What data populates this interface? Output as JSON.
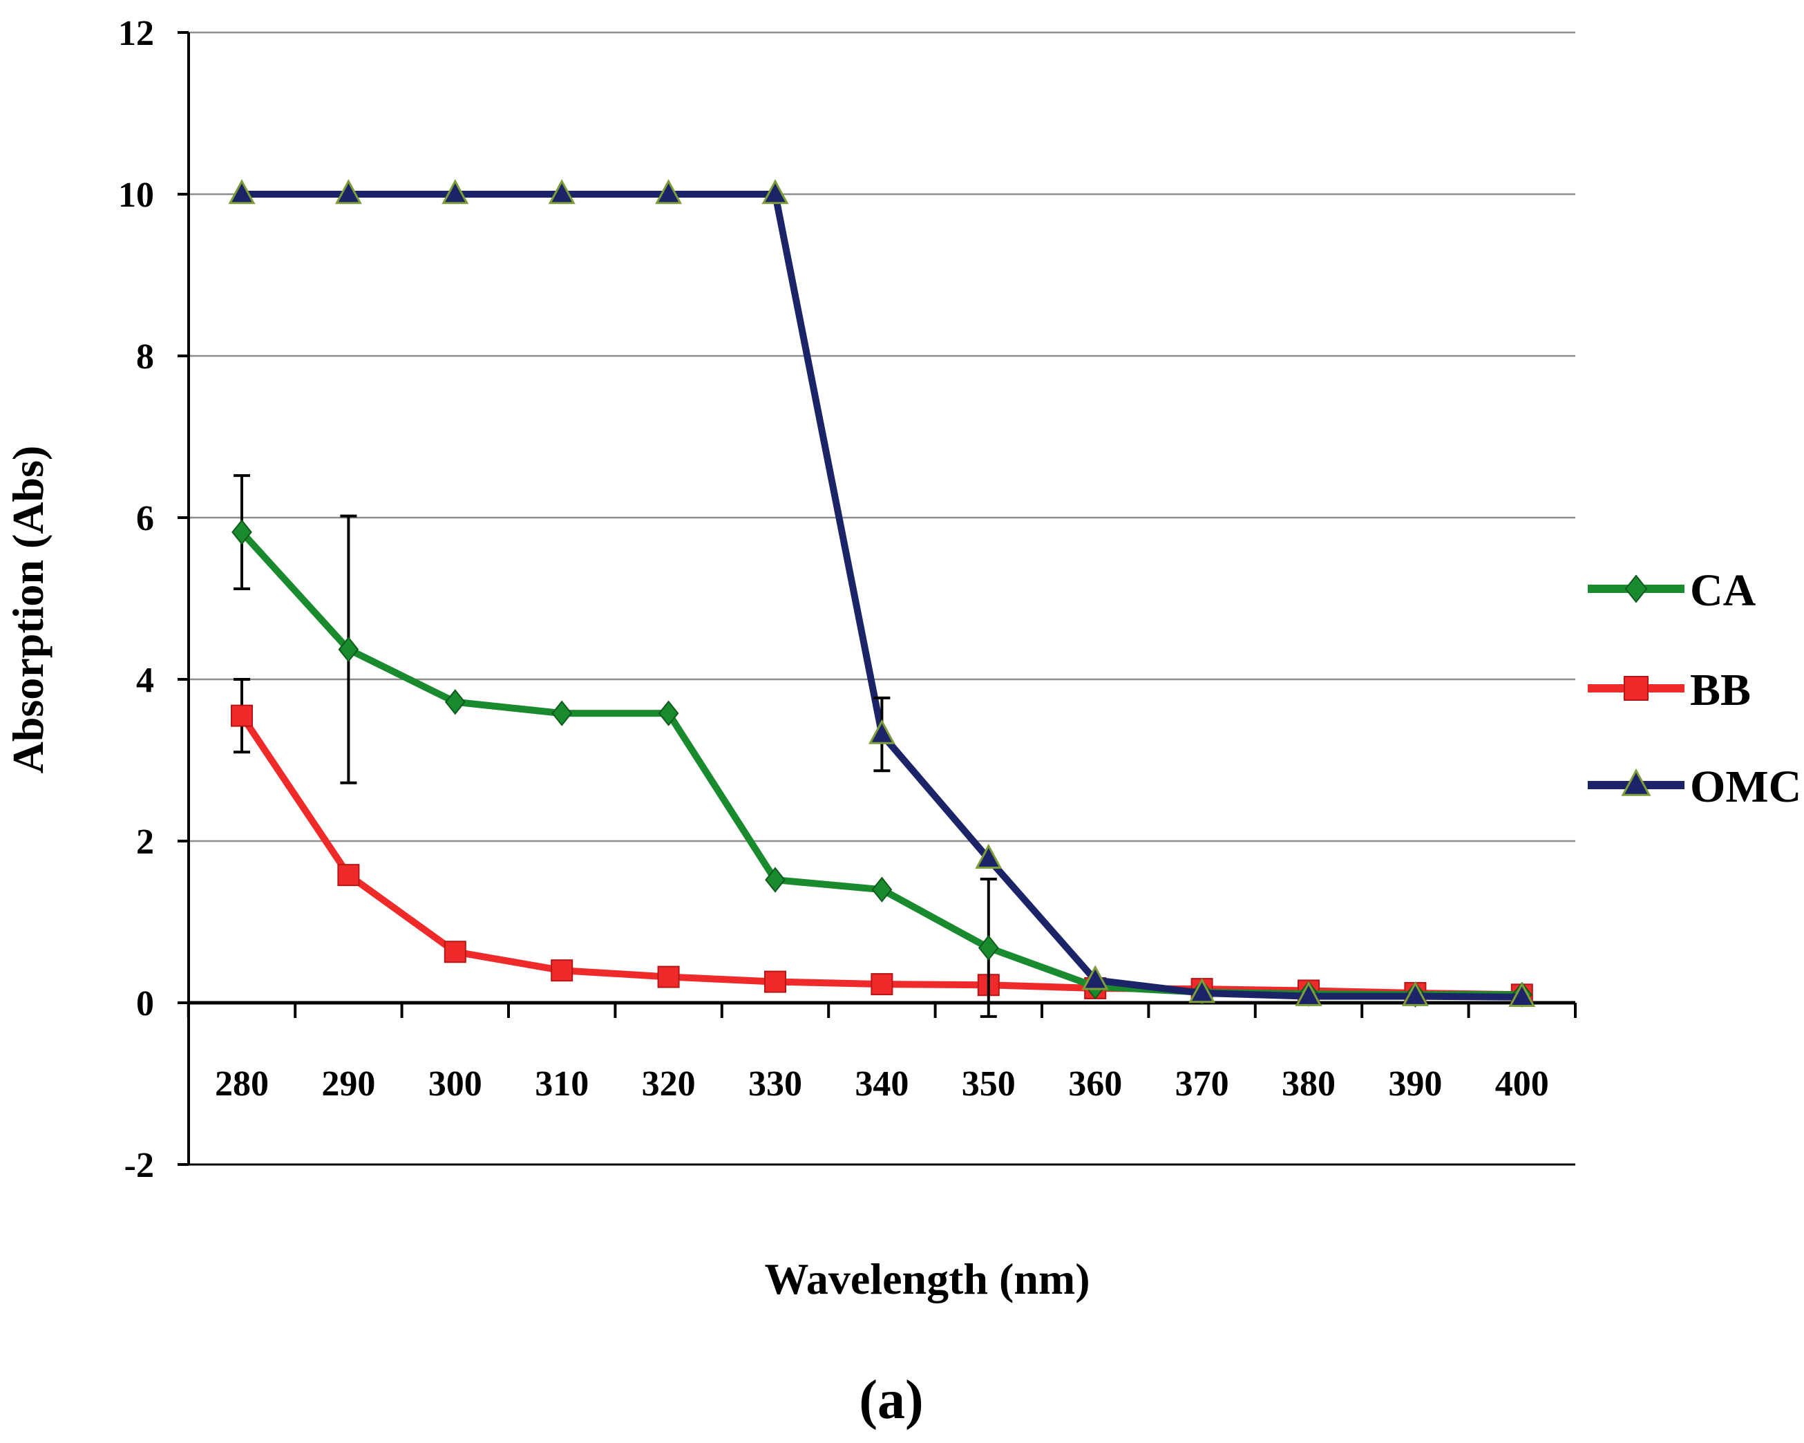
{
  "chart_data": {
    "type": "line",
    "title": "",
    "caption": "(a)",
    "xlabel": "Wavelength (nm)",
    "ylabel": "Absorption (Abs)",
    "categories": [
      "280",
      "290",
      "300",
      "310",
      "320",
      "330",
      "340",
      "350",
      "360",
      "370",
      "380",
      "390",
      "400"
    ],
    "ylim": [
      -2,
      12
    ],
    "yticks": [
      -2,
      0,
      2,
      4,
      6,
      8,
      10,
      12
    ],
    "ytick_labels": [
      "-2",
      "0",
      "2",
      "4",
      "6",
      "8",
      "10",
      "12"
    ],
    "grid": "horizontal",
    "legend_position": "right",
    "series": [
      {
        "name": "CA",
        "color": "#1a8a2e",
        "marker": "diamond",
        "values": [
          5.82,
          4.37,
          3.72,
          3.58,
          3.58,
          1.52,
          1.4,
          0.68,
          0.2,
          0.13,
          0.11,
          0.1,
          0.1
        ],
        "errors": [
          0.7,
          1.65,
          0,
          0,
          0,
          0,
          0,
          0.85,
          0,
          0,
          0,
          0,
          0
        ]
      },
      {
        "name": "BB",
        "color": "#ee2a2a",
        "marker": "square",
        "values": [
          3.55,
          1.58,
          0.63,
          0.4,
          0.32,
          0.26,
          0.23,
          0.22,
          0.18,
          0.17,
          0.15,
          0.12,
          0.1
        ],
        "errors": [
          0.45,
          0,
          0,
          0,
          0,
          0,
          0,
          0,
          0,
          0,
          0,
          0,
          0
        ]
      },
      {
        "name": "OMC",
        "color": "#1b2466",
        "marker": "triangle",
        "values": [
          10,
          10,
          10,
          10,
          10,
          10,
          3.32,
          1.78,
          0.28,
          0.12,
          0.08,
          0.08,
          0.07
        ],
        "errors": [
          0,
          0,
          0,
          0,
          0,
          0,
          0.45,
          0,
          0,
          0,
          0,
          0,
          0
        ]
      }
    ]
  }
}
